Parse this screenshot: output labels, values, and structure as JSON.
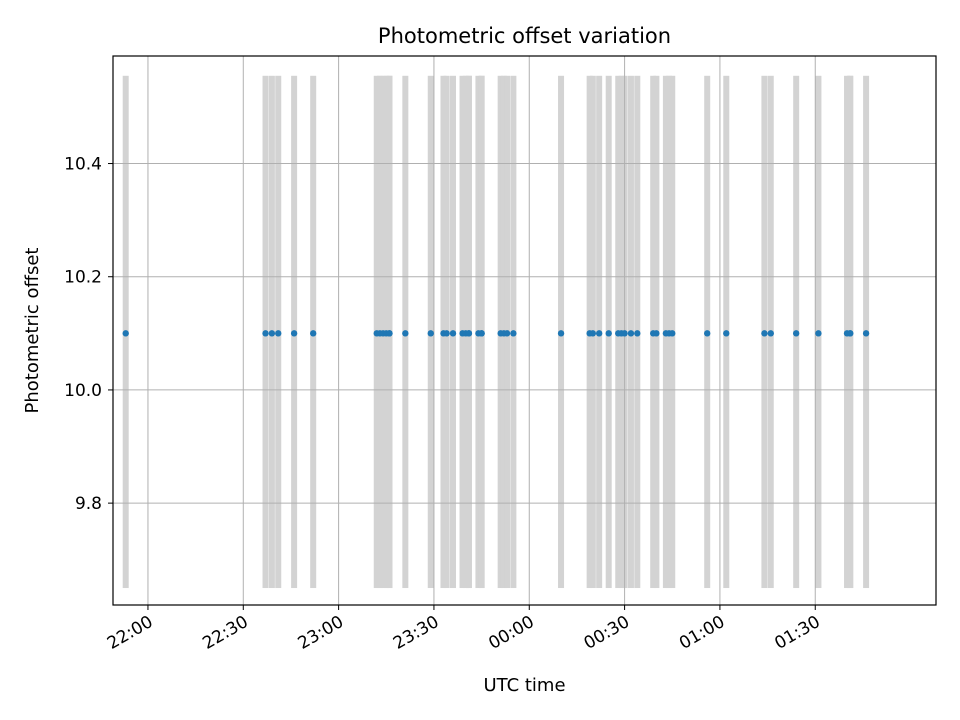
{
  "chart_data": {
    "type": "scatter",
    "title": "Photometric offset variation",
    "xlabel": "UTC time",
    "ylabel": "Photometric offset",
    "x_axis": {
      "unit": "UTC time (HH:MM)",
      "range": [
        "21:49",
        "02:08"
      ],
      "ticks": [
        "22:00",
        "22:30",
        "23:00",
        "23:30",
        "00:00",
        "00:30",
        "01:00",
        "01:30"
      ],
      "tick_label_rotation_deg": 30
    },
    "y_axis": {
      "range": [
        9.62,
        10.59
      ],
      "ticks": [
        9.8,
        10.0,
        10.2,
        10.4
      ],
      "tick_labels": [
        "9.8",
        "10.0",
        "10.2",
        "10.4"
      ]
    },
    "grid": true,
    "point_color": "#1f77b4",
    "band_color": "#d3d3d3",
    "band_y_range": [
      9.65,
      10.555
    ],
    "series": [
      {
        "values_y": 10.1,
        "x": [
          "21:53",
          "22:37",
          "22:39",
          "22:41",
          "22:46",
          "22:52",
          "23:12",
          "23:13",
          "23:14",
          "23:15",
          "23:16",
          "23:16",
          "23:21",
          "23:29",
          "23:33",
          "23:34",
          "23:36",
          "23:39",
          "23:40",
          "23:41",
          "23:41",
          "23:44",
          "23:45",
          "23:45",
          "23:51",
          "23:52",
          "23:53",
          "23:55",
          "00:10",
          "00:19",
          "00:20",
          "00:22",
          "00:25",
          "00:28",
          "00:29",
          "00:30",
          "00:32",
          "00:34",
          "00:39",
          "00:40",
          "00:43",
          "00:44",
          "00:45",
          "00:56",
          "01:02",
          "01:14",
          "01:16",
          "01:24",
          "01:31",
          "01:40",
          "01:41",
          "01:41",
          "01:46"
        ]
      }
    ]
  }
}
